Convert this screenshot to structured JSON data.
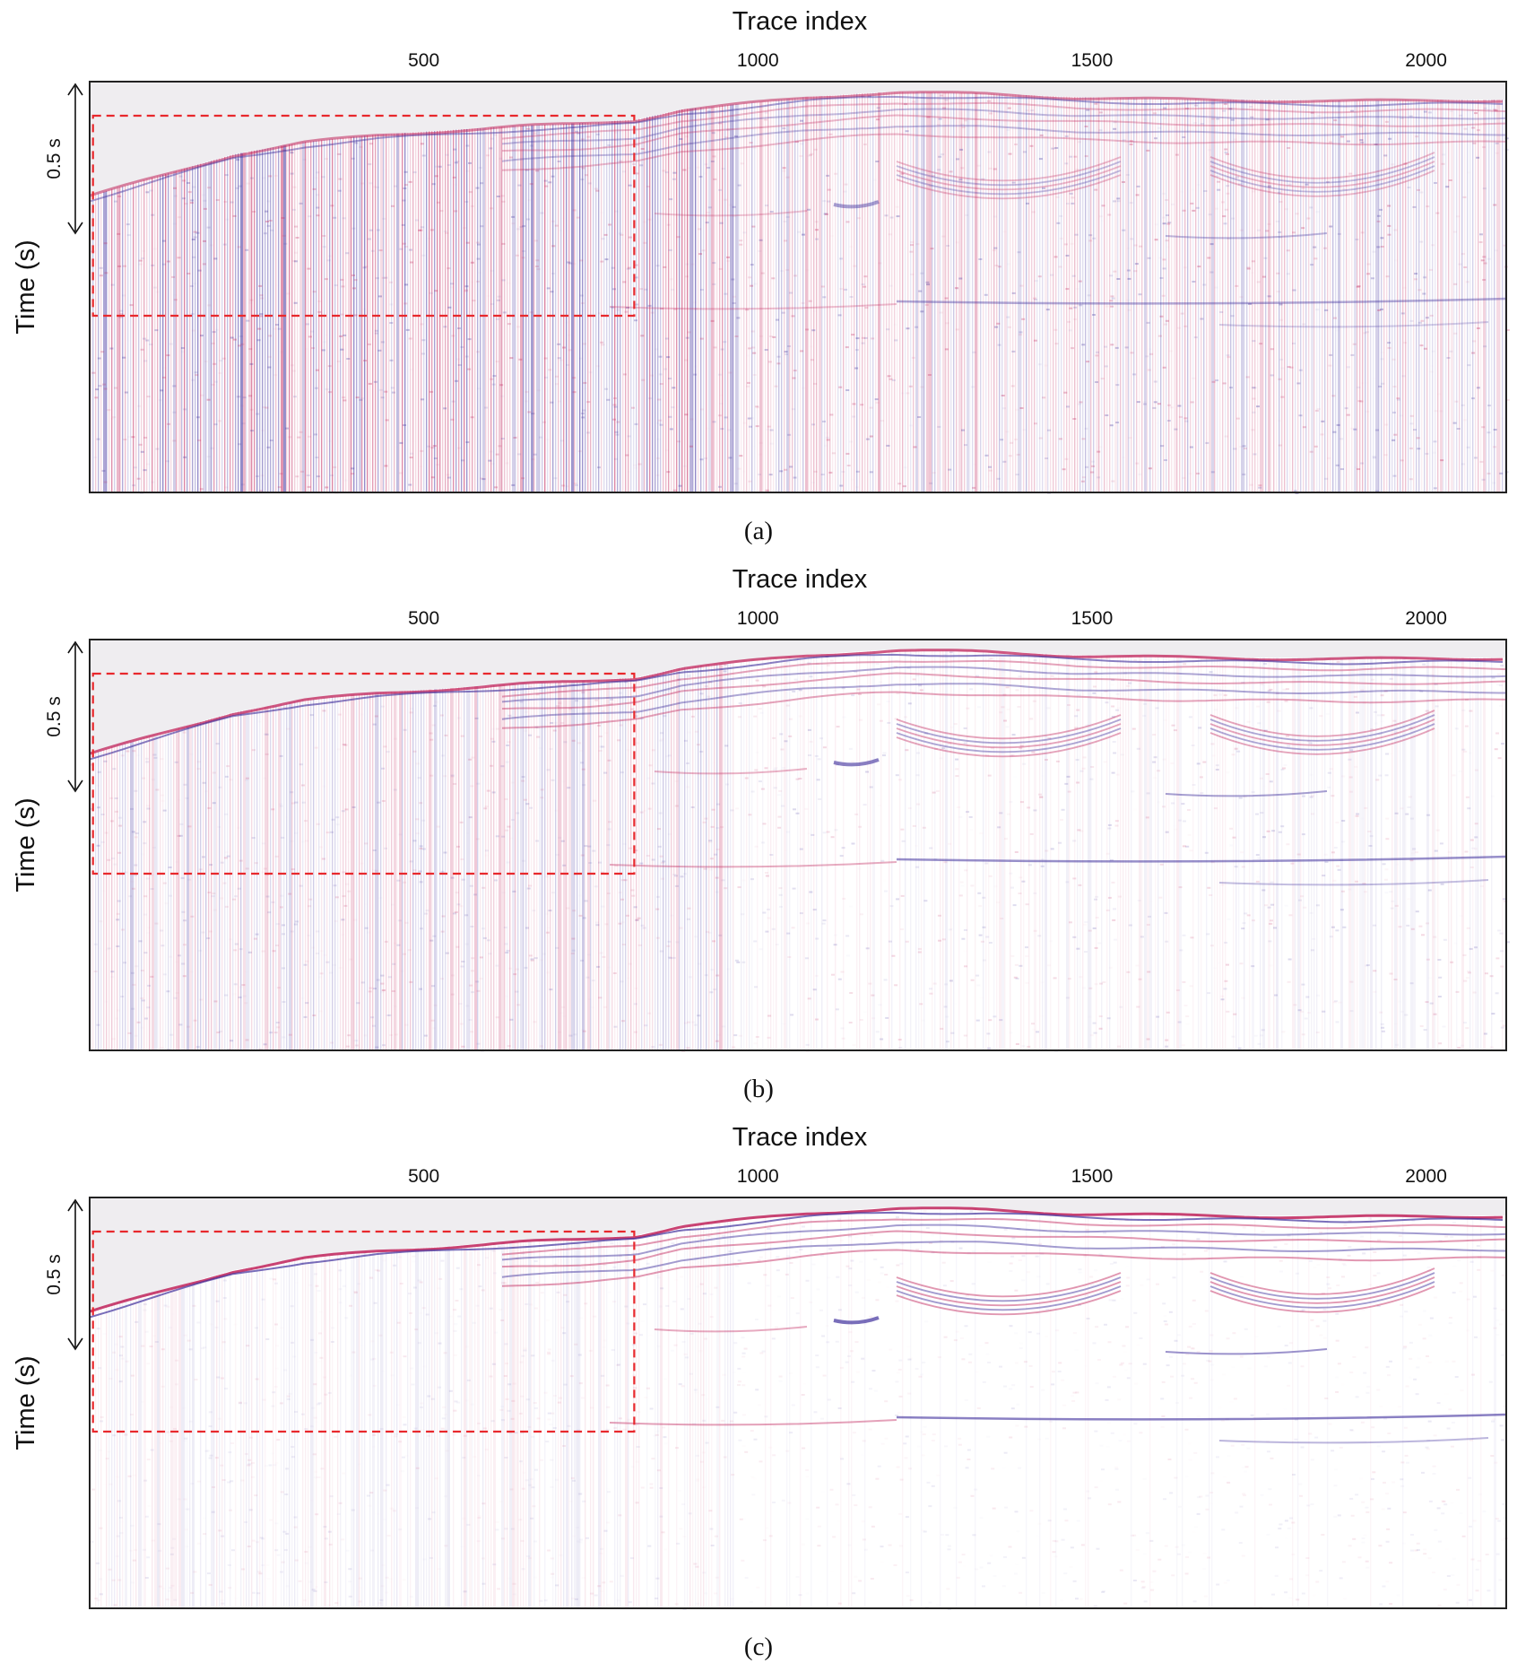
{
  "figure": {
    "panels": [
      {
        "caption": "(a)"
      },
      {
        "caption": "(b)"
      },
      {
        "caption": "(c)"
      }
    ]
  },
  "chart_data": [
    {
      "type": "heatmap",
      "title": "",
      "xlabel": "Trace index",
      "ylabel": "Time (s)",
      "x_ticks": [
        500,
        1000,
        1500,
        2000
      ],
      "xlim": [
        0,
        2120
      ],
      "scale_bar": {
        "label": "0.5 s",
        "length_s": 0.5
      },
      "annotation": {
        "kind": "dashed-rectangle",
        "color": "#e8282c",
        "x_range": [
          5,
          815
        ]
      },
      "noise_level": "high",
      "colors": {
        "positive": "#c0225a",
        "negative": "#3a2a9a",
        "background": "#efedf0"
      }
    },
    {
      "type": "heatmap",
      "title": "",
      "xlabel": "Trace index",
      "ylabel": "Time (s)",
      "x_ticks": [
        500,
        1000,
        1500,
        2000
      ],
      "xlim": [
        0,
        2120
      ],
      "scale_bar": {
        "label": "0.5 s",
        "length_s": 0.5
      },
      "annotation": {
        "kind": "dashed-rectangle",
        "color": "#e8282c",
        "x_range": [
          5,
          815
        ]
      },
      "noise_level": "medium",
      "colors": {
        "positive": "#c0225a",
        "negative": "#3a2a9a",
        "background": "#efedf0"
      }
    },
    {
      "type": "heatmap",
      "title": "",
      "xlabel": "Trace index",
      "ylabel": "Time (s)",
      "x_ticks": [
        500,
        1000,
        1500,
        2000
      ],
      "xlim": [
        0,
        2120
      ],
      "scale_bar": {
        "label": "0.5 s",
        "length_s": 0.5
      },
      "annotation": {
        "kind": "dashed-rectangle",
        "color": "#e8282c",
        "x_range": [
          5,
          815
        ]
      },
      "noise_level": "low",
      "colors": {
        "positive": "#c0225a",
        "negative": "#3a2a9a",
        "background": "#efedf0"
      }
    }
  ]
}
